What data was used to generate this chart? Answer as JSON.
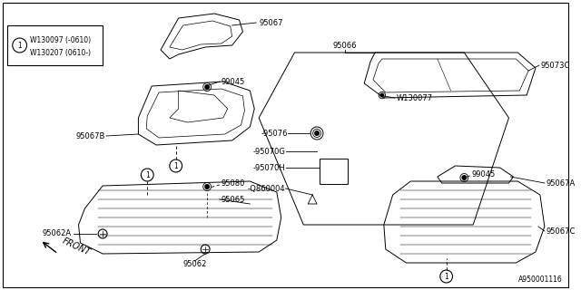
{
  "background_color": "#ffffff",
  "diagram_id": "A950001116",
  "legend_circle": "1",
  "legend_line1": "W130097 （-0610）",
  "legend_line2": "W130207 （0610-）",
  "fs": 6.0
}
